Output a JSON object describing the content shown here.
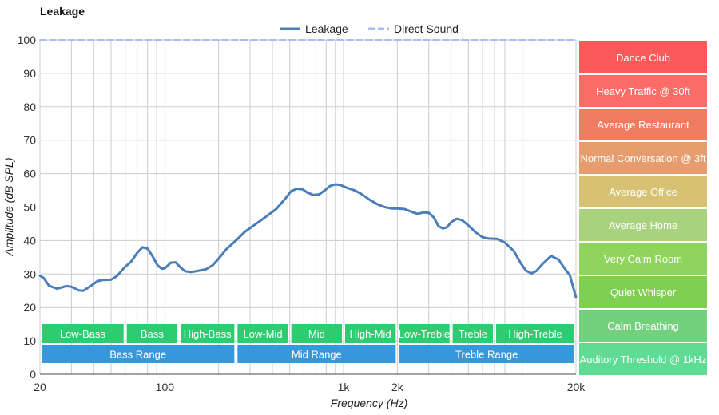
{
  "chart_data": {
    "type": "line",
    "title": "Leakage",
    "xlabel": "Frequency (Hz)",
    "ylabel": "Amplitude (dB SPL)",
    "x_scale": "log",
    "xlim": [
      20,
      20000
    ],
    "ylim": [
      0,
      100
    ],
    "grid": true,
    "legend_position": "top-center",
    "x_ticks": [
      {
        "value": 20,
        "label": "20"
      },
      {
        "value": 100,
        "label": "100"
      },
      {
        "value": 1000,
        "label": "1k"
      },
      {
        "value": 2000,
        "label": "2k"
      },
      {
        "value": 20000,
        "label": "20k"
      }
    ],
    "y_ticks": [
      0,
      10,
      20,
      30,
      40,
      50,
      60,
      70,
      80,
      90,
      100
    ],
    "series": [
      {
        "name": "Leakage",
        "color": "#4a7ebb",
        "style": "solid",
        "points": [
          [
            20,
            29.5
          ],
          [
            21,
            28.8
          ],
          [
            22.5,
            26.5
          ],
          [
            25,
            25.6
          ],
          [
            28,
            26.4
          ],
          [
            30,
            26.2
          ],
          [
            33,
            25.1
          ],
          [
            35,
            25.0
          ],
          [
            38,
            26.2
          ],
          [
            42,
            27.9
          ],
          [
            45,
            28.2
          ],
          [
            50,
            28.3
          ],
          [
            54,
            29.4
          ],
          [
            59,
            31.8
          ],
          [
            65,
            33.8
          ],
          [
            70,
            36.3
          ],
          [
            75,
            38.0
          ],
          [
            80,
            37.6
          ],
          [
            85,
            35.5
          ],
          [
            91,
            32.6
          ],
          [
            96,
            31.6
          ],
          [
            100,
            31.7
          ],
          [
            108,
            33.4
          ],
          [
            115,
            33.5
          ],
          [
            122,
            32.0
          ],
          [
            130,
            30.8
          ],
          [
            140,
            30.6
          ],
          [
            155,
            31.0
          ],
          [
            170,
            31.4
          ],
          [
            185,
            32.6
          ],
          [
            200,
            34.6
          ],
          [
            220,
            37.3
          ],
          [
            250,
            40.0
          ],
          [
            280,
            42.6
          ],
          [
            320,
            44.8
          ],
          [
            370,
            47.2
          ],
          [
            420,
            49.4
          ],
          [
            470,
            52.4
          ],
          [
            510,
            54.8
          ],
          [
            550,
            55.5
          ],
          [
            590,
            55.3
          ],
          [
            630,
            54.3
          ],
          [
            680,
            53.6
          ],
          [
            730,
            53.8
          ],
          [
            780,
            54.9
          ],
          [
            840,
            56.3
          ],
          [
            900,
            56.8
          ],
          [
            960,
            56.6
          ],
          [
            1030,
            55.9
          ],
          [
            1150,
            55.0
          ],
          [
            1250,
            54.0
          ],
          [
            1400,
            52.2
          ],
          [
            1550,
            50.8
          ],
          [
            1700,
            50.0
          ],
          [
            1850,
            49.6
          ],
          [
            2000,
            49.6
          ],
          [
            2200,
            49.4
          ],
          [
            2400,
            48.6
          ],
          [
            2600,
            48.0
          ],
          [
            2800,
            48.4
          ],
          [
            3000,
            48.3
          ],
          [
            3200,
            46.9
          ],
          [
            3400,
            44.3
          ],
          [
            3600,
            43.6
          ],
          [
            3800,
            44.0
          ],
          [
            4000,
            45.5
          ],
          [
            4300,
            46.5
          ],
          [
            4600,
            46.1
          ],
          [
            5000,
            44.5
          ],
          [
            5500,
            42.4
          ],
          [
            6000,
            41.0
          ],
          [
            6500,
            40.6
          ],
          [
            7200,
            40.5
          ],
          [
            8000,
            39.4
          ],
          [
            9000,
            36.8
          ],
          [
            9800,
            33.3
          ],
          [
            10500,
            31.0
          ],
          [
            11300,
            30.2
          ],
          [
            12000,
            30.9
          ],
          [
            13000,
            33.0
          ],
          [
            14500,
            35.4
          ],
          [
            16000,
            34.3
          ],
          [
            17000,
            32.2
          ],
          [
            18500,
            29.6
          ],
          [
            20000,
            23.0
          ]
        ]
      },
      {
        "name": "Direct Sound",
        "color": "#a9bdf5",
        "style": "dashed",
        "points": [
          [
            20,
            100
          ],
          [
            20000,
            100
          ]
        ]
      }
    ],
    "bands": [
      {
        "label": "Low-Bass",
        "from": 20,
        "to": 60,
        "row": 1
      },
      {
        "label": "Bass",
        "from": 60,
        "to": 120,
        "row": 1
      },
      {
        "label": "High-Bass",
        "from": 120,
        "to": 250,
        "row": 1
      },
      {
        "label": "Low-Mid",
        "from": 250,
        "to": 500,
        "row": 1
      },
      {
        "label": "Mid",
        "from": 500,
        "to": 1000,
        "row": 1
      },
      {
        "label": "High-Mid",
        "from": 1000,
        "to": 2000,
        "row": 1
      },
      {
        "label": "Low-Treble",
        "from": 2000,
        "to": 4000,
        "row": 1
      },
      {
        "label": "Treble",
        "from": 4000,
        "to": 7000,
        "row": 1
      },
      {
        "label": "High-Treble",
        "from": 7000,
        "to": 20000,
        "row": 1
      },
      {
        "label": "Bass Range",
        "from": 20,
        "to": 250,
        "row": 2
      },
      {
        "label": "Mid Range",
        "from": 250,
        "to": 2000,
        "row": 2
      },
      {
        "label": "Treble Range",
        "from": 2000,
        "to": 20000,
        "row": 2
      }
    ],
    "band_colors": {
      "row1": "#2ecc71",
      "row2": "#3498db"
    },
    "reference_levels": [
      {
        "label": "Dance Club",
        "color": "#fc5a5a"
      },
      {
        "label": "Heavy Traffic @ 30ft",
        "color": "#fb6c66"
      },
      {
        "label": "Average Restaurant",
        "color": "#f07c60"
      },
      {
        "label": "Normal Conversation @ 3ft",
        "color": "#e69c6c"
      },
      {
        "label": "Average Office",
        "color": "#d6c272"
      },
      {
        "label": "Average Home",
        "color": "#a8d27e"
      },
      {
        "label": "Very Calm Room",
        "color": "#8fd45c"
      },
      {
        "label": "Quiet Whisper",
        "color": "#7ecf52"
      },
      {
        "label": "Calm Breathing",
        "color": "#73d17e"
      },
      {
        "label": "Auditory Threshold @ 1kHz",
        "color": "#5fdb94"
      }
    ]
  }
}
